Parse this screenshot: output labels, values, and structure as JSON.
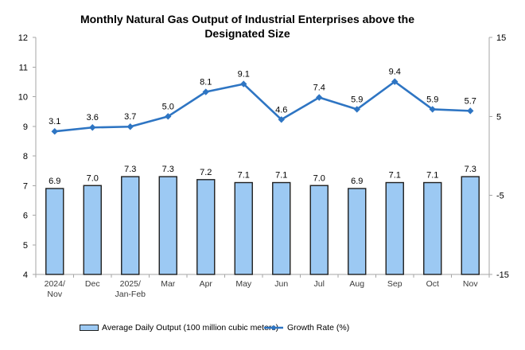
{
  "title_lines": [
    "Monthly Natural Gas Output of Industrial Enterprises above the",
    "Designated Size"
  ],
  "legend": {
    "bar_label": "Average Daily Output (100 million cubic meters)",
    "line_label": "Growth Rate (%)"
  },
  "colors": {
    "bar_fill": "#9CC9F3",
    "bar_border": "#1f1f1f",
    "line": "#2E75C3",
    "axis": "#A6A6A6",
    "label_text": "#000000",
    "category_text": "#3a3a3a"
  },
  "chart_data": {
    "type": "bar",
    "subtype": "bar+line dual axis",
    "title": "Monthly Natural Gas Output of Industrial Enterprises above the Designated Size",
    "categories": [
      "2024/\nNov",
      "Dec",
      "2025/\nJan-Feb",
      "Mar",
      "Apr",
      "May",
      "Jun",
      "Jul",
      "Aug",
      "Sep",
      "Oct",
      "Nov"
    ],
    "series": [
      {
        "name": "Average Daily Output (100 million cubic meters)",
        "type": "bar",
        "axis": "left",
        "values": [
          6.9,
          7.0,
          7.3,
          7.3,
          7.2,
          7.1,
          7.1,
          7.0,
          6.9,
          7.1,
          7.1,
          7.3
        ]
      },
      {
        "name": "Growth Rate (%)",
        "type": "line",
        "axis": "right",
        "values": [
          3.1,
          3.6,
          3.7,
          5.0,
          8.1,
          9.1,
          4.6,
          7.4,
          5.9,
          9.4,
          5.9,
          5.7
        ]
      }
    ],
    "left_axis": {
      "min": 4,
      "max": 12,
      "ticks": [
        4,
        5,
        6,
        7,
        8,
        9,
        10,
        11,
        12
      ]
    },
    "right_axis": {
      "min": -15,
      "max": 15,
      "ticks": [
        -15,
        -5,
        5,
        15
      ]
    },
    "grid": false,
    "legend_position": "bottom",
    "value_labels": true
  }
}
